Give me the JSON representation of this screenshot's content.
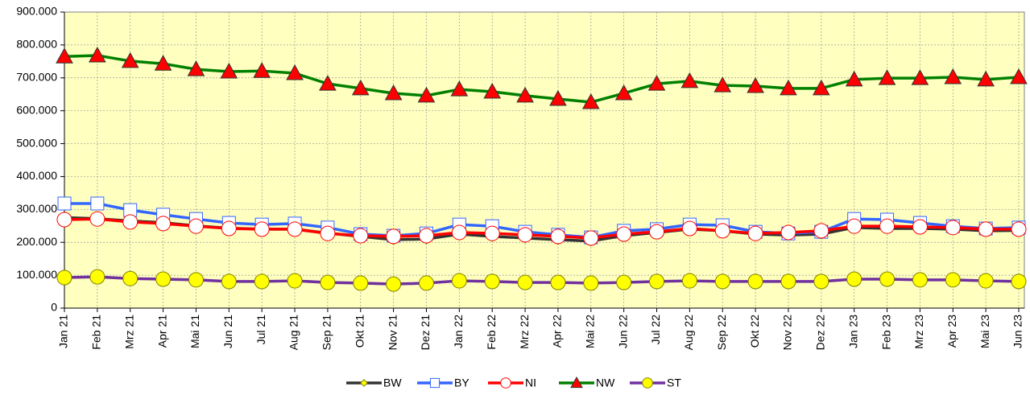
{
  "chart_data": {
    "type": "line",
    "categories": [
      "Jan 21",
      "Feb 21",
      "Mrz 21",
      "Apr 21",
      "Mai 21",
      "Jun 21",
      "Jul 21",
      "Aug 21",
      "Sep 21",
      "Okt 21",
      "Nov 21",
      "Dez 21",
      "Jan 22",
      "Feb 22",
      "Mrz 22",
      "Apr 22",
      "Mai 22",
      "Jun 22",
      "Jul 22",
      "Aug 22",
      "Sep 22",
      "Okt 22",
      "Nov 22",
      "Dez 22",
      "Jan 23",
      "Feb 23",
      "Mrz 23",
      "Apr 23",
      "Mai 23",
      "Jun 23"
    ],
    "ylim": [
      0,
      900000
    ],
    "yticks": [
      0,
      {
        "value": 100000,
        "label": "100.000"
      },
      {
        "value": 200000,
        "label": "200.000"
      },
      {
        "value": 300000,
        "label": "300.000"
      },
      {
        "value": 400000,
        "label": "400.000"
      },
      {
        "value": 500000,
        "label": "500.000"
      },
      {
        "value": 600000,
        "label": "600.000"
      },
      {
        "value": 700000,
        "label": "700.000"
      },
      {
        "value": 800000,
        "label": "800.000"
      },
      {
        "value": 900000,
        "label": "900.000"
      }
    ],
    "grid": true,
    "plot_background": "#ffffc0",
    "legend": "bottom",
    "series": [
      {
        "name": "BW",
        "color": "#333333",
        "marker": "diamond",
        "marker_color": "#ffff00",
        "marker_stroke": "#808000",
        "values": [
          275000,
          272000,
          265000,
          260000,
          250000,
          243000,
          240000,
          240000,
          228000,
          218000,
          208000,
          210000,
          225000,
          218000,
          213000,
          208000,
          204000,
          220000,
          230000,
          240000,
          235000,
          225000,
          222000,
          225000,
          245000,
          242000,
          242000,
          240000,
          235000,
          236000
        ]
      },
      {
        "name": "BY",
        "color": "#3366ff",
        "marker": "square",
        "marker_color": "#ffffff",
        "marker_stroke": "#3366ff",
        "values": [
          318000,
          318000,
          298000,
          284000,
          271000,
          259000,
          254000,
          257000,
          245000,
          225000,
          220000,
          227000,
          254000,
          249000,
          232000,
          223000,
          215000,
          235000,
          240000,
          254000,
          252000,
          232000,
          227000,
          232000,
          271000,
          269000,
          259000,
          249000,
          242000,
          245000
        ]
      },
      {
        "name": "NI",
        "color": "#ff0000",
        "marker": "circle",
        "marker_color": "#ffffff",
        "marker_stroke": "#ff0000",
        "values": [
          269000,
          271000,
          262000,
          257000,
          249000,
          242000,
          240000,
          240000,
          227000,
          220000,
          218000,
          220000,
          230000,
          227000,
          223000,
          218000,
          213000,
          225000,
          232000,
          242000,
          235000,
          227000,
          230000,
          235000,
          249000,
          249000,
          247000,
          245000,
          240000,
          240000
        ]
      },
      {
        "name": "NW",
        "color": "#008000",
        "marker": "triangle",
        "marker_color": "#ff0000",
        "marker_stroke": "#333333",
        "values": [
          765000,
          768000,
          751000,
          743000,
          726000,
          719000,
          721000,
          714000,
          682000,
          668000,
          653000,
          646000,
          665000,
          658000,
          646000,
          636000,
          626000,
          653000,
          682000,
          690000,
          677000,
          675000,
          668000,
          668000,
          695000,
          699000,
          699000,
          702000,
          695000,
          702000
        ]
      },
      {
        "name": "ST",
        "color": "#7030a0",
        "marker": "circle",
        "marker_color": "#ffff00",
        "marker_stroke": "#808000",
        "values": [
          93000,
          95000,
          90000,
          88000,
          86000,
          81000,
          81000,
          83000,
          78000,
          76000,
          73000,
          76000,
          83000,
          81000,
          78000,
          78000,
          76000,
          78000,
          81000,
          83000,
          81000,
          81000,
          81000,
          81000,
          88000,
          88000,
          86000,
          86000,
          83000,
          81000
        ]
      }
    ]
  }
}
